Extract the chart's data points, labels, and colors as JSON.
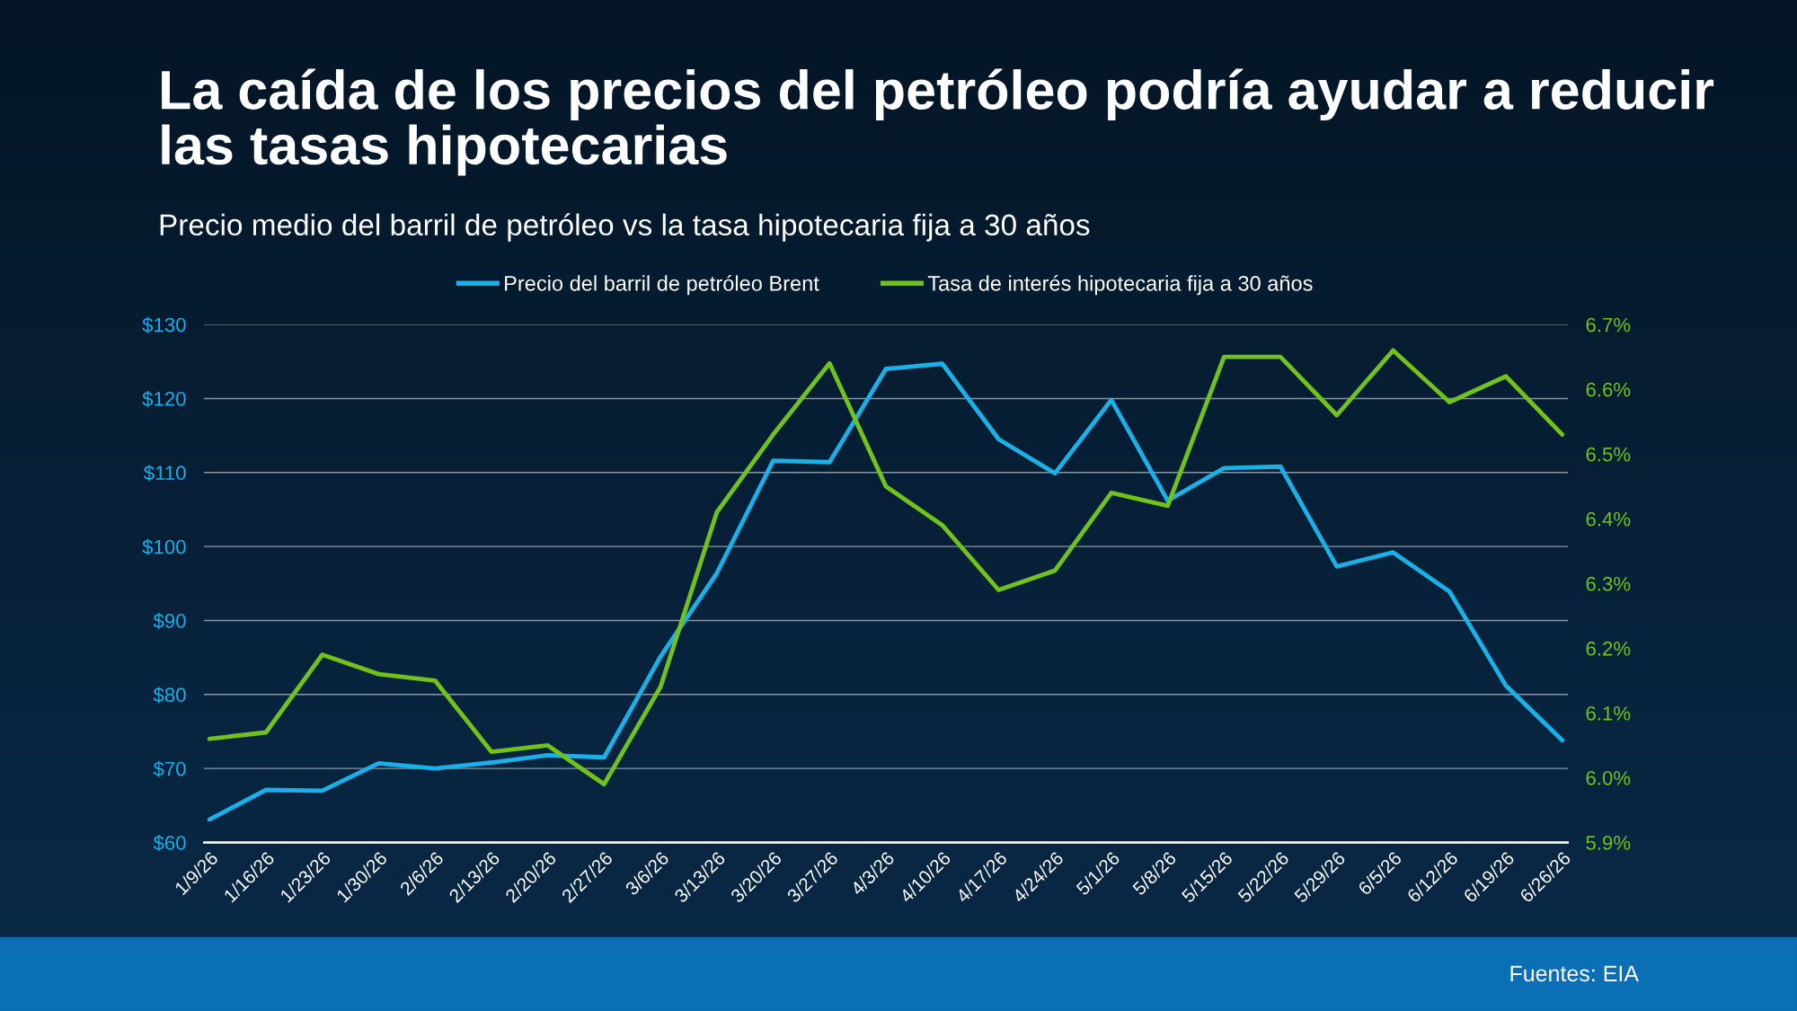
{
  "chart_data": {
    "type": "line",
    "title": "La caída de los precios del petróleo podría ayudar a reducir las tasas hipotecarias",
    "subtitle": "Precio medio del barril de petróleo vs la tasa hipotecaria fija a 30 años",
    "categories": [
      "1/9/26",
      "1/16/26",
      "1/23/26",
      "1/30/26",
      "2/6/26",
      "2/13/26",
      "2/20/26",
      "2/27/26",
      "3/6/26",
      "3/13/26",
      "3/20/26",
      "3/27/26",
      "4/3/26",
      "4/10/26",
      "4/17/26",
      "4/24/26",
      "5/1/26",
      "5/8/26",
      "5/15/26",
      "5/22/26",
      "5/29/26",
      "6/5/26",
      "6/12/26",
      "6/19/26",
      "6/26/26"
    ],
    "series": [
      {
        "name": "Precio del barril de petróleo Brent",
        "color": "#1ab0e8",
        "values": [
          63.1,
          67.1,
          67.0,
          70.7,
          70.0,
          70.8,
          71.8,
          71.5,
          85.1,
          96.4,
          111.6,
          111.4,
          124.0,
          124.7,
          114.5,
          109.9,
          119.8,
          106.2,
          110.6,
          110.8,
          97.3,
          99.2,
          93.9,
          81.2,
          73.8
        ]
      },
      {
        "name": "Tasa de interés hipotecaria fija a 30 años",
        "color": "#72c21c",
        "axis": "y2",
        "values": [
          6.06,
          6.07,
          6.19,
          6.16,
          6.15,
          6.04,
          6.05,
          5.99,
          6.14,
          6.41,
          6.53,
          6.64,
          6.45,
          6.39,
          6.29,
          6.32,
          6.44,
          6.42,
          6.65,
          6.65,
          6.56,
          6.66,
          6.58,
          6.62,
          6.53
        ]
      }
    ],
    "ylim": [
      60,
      130
    ],
    "yticks": [
      {
        "value": 60,
        "label": "$60"
      },
      {
        "value": 70,
        "label": "$70"
      },
      {
        "value": 80,
        "label": "$80"
      },
      {
        "value": 90,
        "label": "$90"
      },
      {
        "value": 100,
        "label": "$100"
      },
      {
        "value": 110,
        "label": "$110"
      },
      {
        "value": 120,
        "label": "$120"
      },
      {
        "value": 130,
        "label": "$130"
      }
    ],
    "y2lim": [
      5.9,
      6.7
    ],
    "y2ticks": [
      {
        "value": 5.9,
        "label": "5.9%"
      },
      {
        "value": 6.0,
        "label": "6.0%"
      },
      {
        "value": 6.1,
        "label": "6.1%"
      },
      {
        "value": 6.2,
        "label": "6.2%"
      },
      {
        "value": 6.3,
        "label": "6.3%"
      },
      {
        "value": 6.4,
        "label": "6.4%"
      },
      {
        "value": 6.5,
        "label": "6.5%"
      },
      {
        "value": 6.6,
        "label": "6.6%"
      },
      {
        "value": 6.7,
        "label": "6.7%"
      }
    ],
    "grid": "y",
    "legend": "top",
    "marker": "none",
    "line_style": "solid",
    "annotations": [
      "Fuentes: EIA"
    ]
  }
}
